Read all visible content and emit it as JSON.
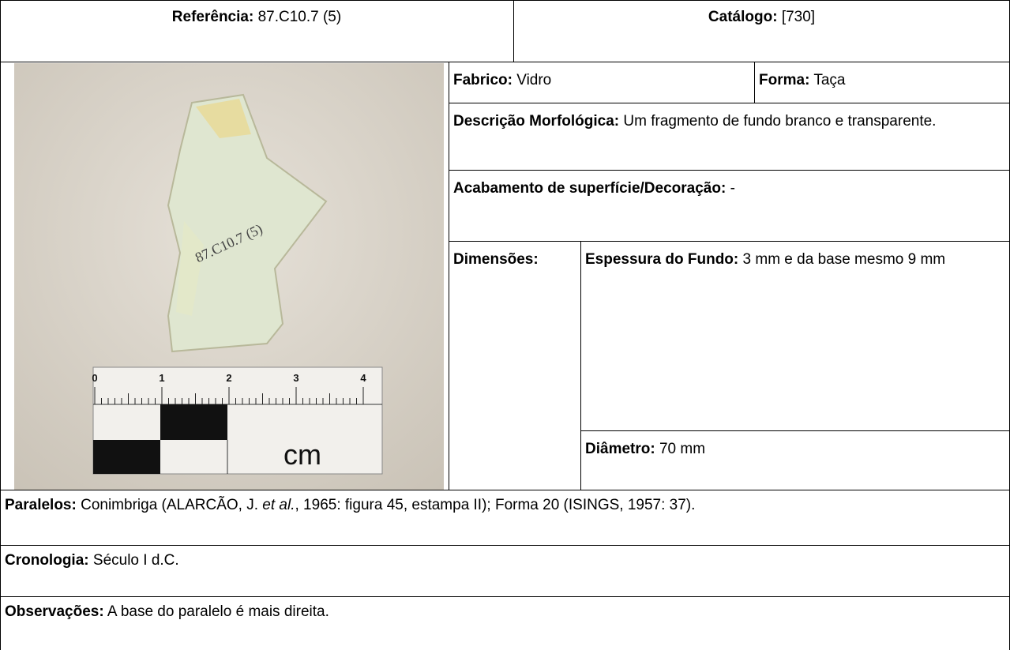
{
  "header": {
    "reference": {
      "label": "Referência:",
      "value": "87.C10.7 (5)"
    },
    "catalog": {
      "label": "Catálogo:",
      "value": "[730]"
    }
  },
  "photo": {
    "ruler_marks": [
      "0",
      "1",
      "2",
      "3",
      "4"
    ],
    "ruler_unit": "cm"
  },
  "fields": {
    "fabric": {
      "label": "Fabrico:",
      "value": "Vidro"
    },
    "form": {
      "label": "Forma:",
      "value": "Taça"
    },
    "morphology": {
      "label": "Descrição Morfológica:",
      "value": "Um fragmento de fundo branco e transparente."
    },
    "finish": {
      "label": "Acabamento de superfície/Decoração:",
      "value": "-"
    },
    "dimensions": {
      "label": "Dimensões:",
      "thickness": {
        "label": "Espessura do Fundo:",
        "value": "3 mm e da base mesmo 9 mm"
      },
      "diameter": {
        "label": "Diâmetro:",
        "value": "70 mm"
      }
    },
    "parallels": {
      "label": "Paralelos:",
      "parts": [
        "Conimbriga (ALARCÃO, J. ",
        "et al.",
        ", 1965: figura 45, estampa II); Forma 20 (ISINGS, 1957: 37)."
      ]
    },
    "chronology": {
      "label": "Cronologia:",
      "value": "Século I d.C."
    },
    "observations": {
      "label": "Observações:",
      "value": "A base do paralelo é mais direita."
    }
  }
}
